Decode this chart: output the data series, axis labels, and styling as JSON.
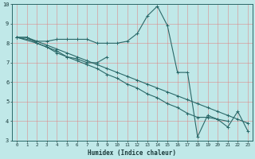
{
  "xlabel": "Humidex (Indice chaleur)",
  "bg_color": "#c0e8e8",
  "grid_color": "#e08080",
  "line_color": "#2a6868",
  "xlim": [
    -0.5,
    23.5
  ],
  "ylim": [
    3,
    10
  ],
  "xticks": [
    0,
    1,
    2,
    3,
    4,
    5,
    6,
    7,
    8,
    9,
    10,
    11,
    12,
    13,
    14,
    15,
    16,
    17,
    18,
    19,
    20,
    21,
    22,
    23
  ],
  "yticks": [
    3,
    4,
    5,
    6,
    7,
    8,
    9,
    10
  ],
  "series": [
    {
      "x": [
        0,
        1,
        2,
        3,
        4,
        5,
        6,
        7,
        8,
        9,
        10,
        11,
        12,
        13,
        14,
        15,
        16,
        17,
        18,
        19,
        20,
        21,
        22,
        23
      ],
      "y": [
        8.3,
        8.3,
        8.1,
        8.1,
        8.2,
        8.2,
        8.2,
        8.2,
        8.0,
        8.0,
        8.0,
        8.1,
        8.5,
        9.4,
        9.9,
        8.9,
        6.5,
        6.5,
        3.2,
        4.3,
        4.1,
        3.7,
        4.5,
        3.5
      ]
    },
    {
      "x": [
        0,
        1,
        2,
        3,
        4,
        5,
        6,
        7,
        8,
        9
      ],
      "y": [
        8.3,
        8.3,
        8.0,
        7.8,
        7.5,
        7.3,
        7.2,
        7.0,
        7.0,
        7.3
      ]
    },
    {
      "x": [
        0,
        2,
        3,
        4,
        5,
        6,
        7,
        8,
        9,
        10,
        11,
        12,
        13,
        14,
        15,
        16,
        17,
        18,
        19,
        20,
        21
      ],
      "y": [
        8.3,
        8.0,
        7.8,
        7.6,
        7.3,
        7.1,
        6.9,
        6.7,
        6.4,
        6.2,
        5.9,
        5.7,
        5.4,
        5.2,
        4.9,
        4.7,
        4.4,
        4.2,
        4.2,
        4.1,
        4.0
      ]
    },
    {
      "x": [
        0,
        2,
        3,
        4,
        5,
        6,
        7,
        8,
        9,
        10,
        11,
        12,
        13,
        14,
        15,
        16,
        17,
        18,
        19,
        20,
        21,
        22,
        23
      ],
      "y": [
        8.3,
        8.1,
        7.9,
        7.7,
        7.5,
        7.3,
        7.1,
        6.9,
        6.7,
        6.5,
        6.3,
        6.1,
        5.9,
        5.7,
        5.5,
        5.3,
        5.1,
        4.9,
        4.7,
        4.5,
        4.3,
        4.1,
        3.9
      ]
    }
  ]
}
